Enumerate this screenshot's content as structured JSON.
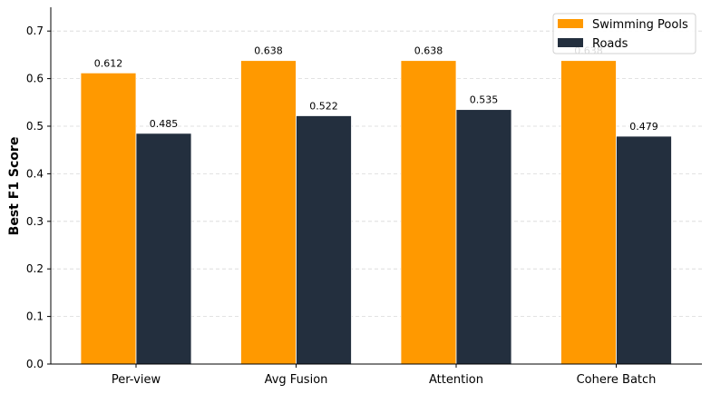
{
  "chart_data": {
    "type": "bar",
    "categories": [
      "Per-view",
      "Avg Fusion",
      "Attention",
      "Cohere Batch"
    ],
    "series": [
      {
        "name": "Swimming Pools",
        "values": [
          0.612,
          0.638,
          0.638,
          0.638
        ],
        "color": "#ff9900"
      },
      {
        "name": "Roads",
        "values": [
          0.485,
          0.522,
          0.535,
          0.479
        ],
        "color": "#232f3e"
      }
    ],
    "data_labels": [
      [
        "0.612",
        "0.638",
        "0.638",
        "0.638"
      ],
      [
        "0.485",
        "0.522",
        "0.535",
        "0.479"
      ]
    ],
    "xlabel": "",
    "ylabel": "Best F1 Score",
    "ylim": [
      0,
      0.75
    ],
    "yticks": [
      "0.0",
      "0.1",
      "0.2",
      "0.3",
      "0.4",
      "0.5",
      "0.6",
      "0.7"
    ],
    "grid": "y-dashed",
    "legend_position": "top-right"
  }
}
